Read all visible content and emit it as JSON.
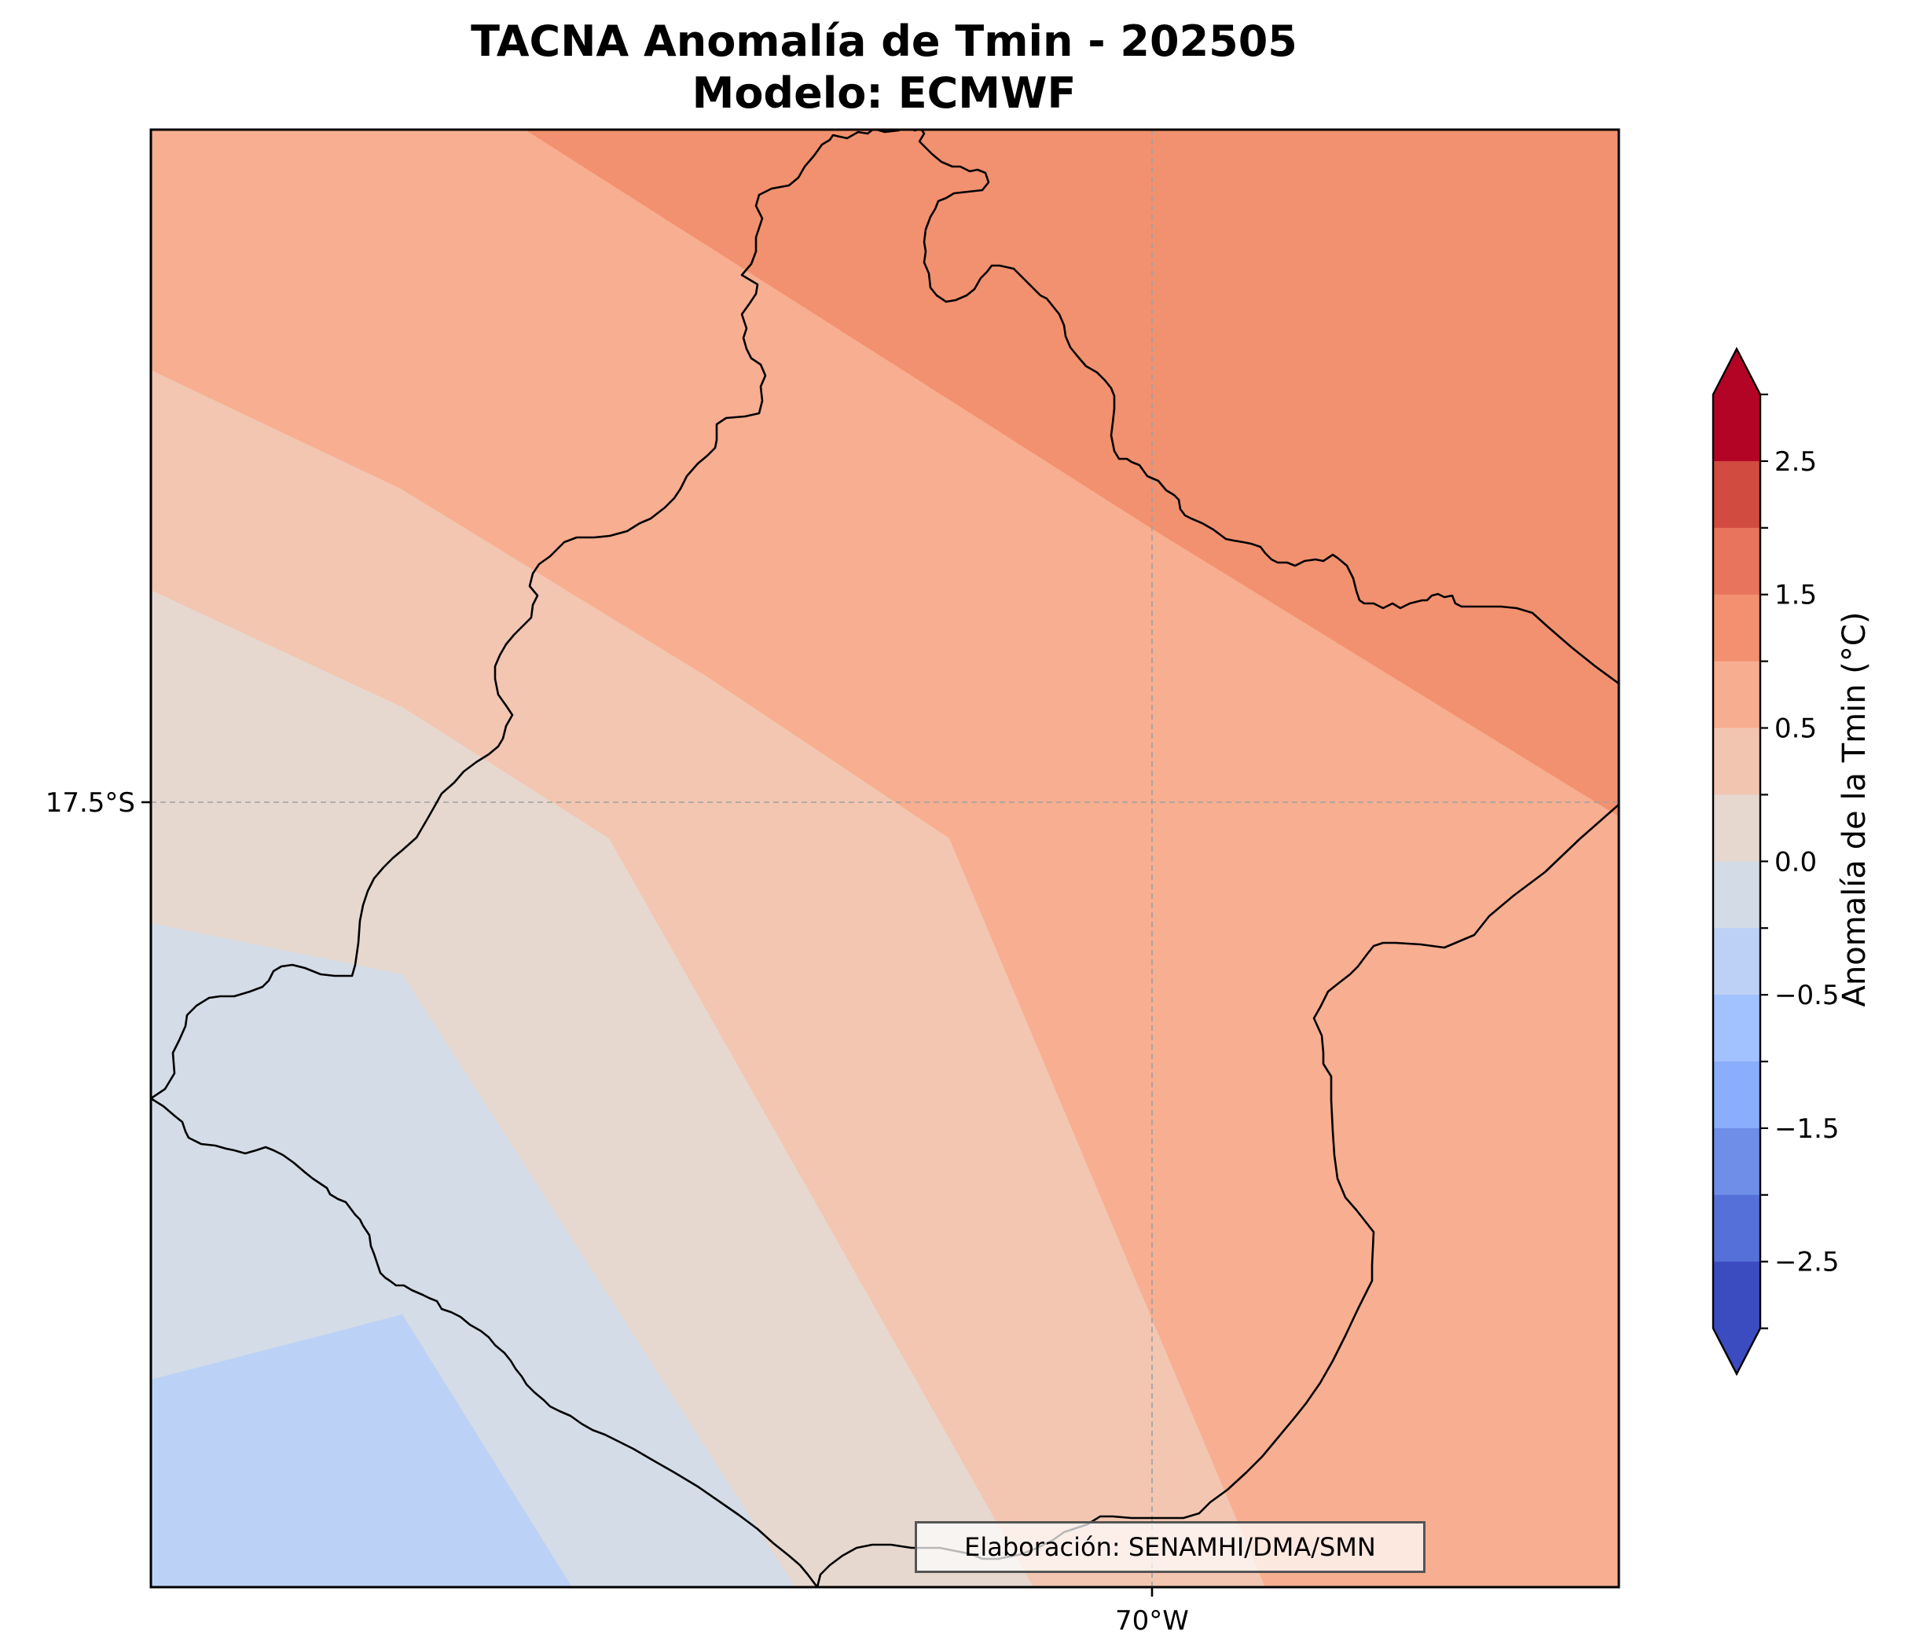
{
  "title": {
    "line1": "TACNA Anomalía de Tmin - 202505",
    "line2": "Modelo: ECMWF"
  },
  "axes": {
    "x_ticks": [
      "70°W"
    ],
    "y_ticks": [
      "17.5°S"
    ]
  },
  "credit": "Elaboración: SENAMHI/DMA/SMN",
  "colorbar": {
    "label": "Anomalía de la Tmin (°C)",
    "extend": "both",
    "levels": [
      -3.0,
      -2.5,
      -2.0,
      -1.5,
      -1.0,
      -0.5,
      -0.25,
      0.0,
      0.25,
      0.5,
      1.0,
      1.5,
      2.0,
      2.5,
      3.0
    ],
    "tick_labels": [
      "2.5",
      "1.5",
      "0.5",
      "0.0",
      "−0.5",
      "−1.5",
      "−2.5"
    ],
    "colors": {
      "min_arrow": "#3b4cc0",
      "max_arrow": "#b40426",
      "bins_top_to_bottom": [
        "#b40426",
        "#d24b40",
        "#e7745b",
        "#f2906f",
        "#f7ad90",
        "#f2c5b0",
        "#e6d7cf",
        "#d2dbe6",
        "#bdd1f6",
        "#a2c1ff",
        "#8aadfc",
        "#6e8ee8",
        "#5570d9",
        "#3b4cc0"
      ]
    }
  },
  "map": {
    "shaded_colors": {
      "anomaly_1_0_to_1_5": "#f2916f",
      "anomaly_0_5_to_1_0": "#f7ae91",
      "anomaly_0_25_to_0_5": "#f2c6b1",
      "anomaly_0_0_to_0_25": "#e6d8cf",
      "anomaly_neg0_25_to_0_0": "#d3dce7",
      "anomaly_neg0_5_to_neg0_25": "#bcd1f6"
    },
    "region": "TACNA"
  }
}
